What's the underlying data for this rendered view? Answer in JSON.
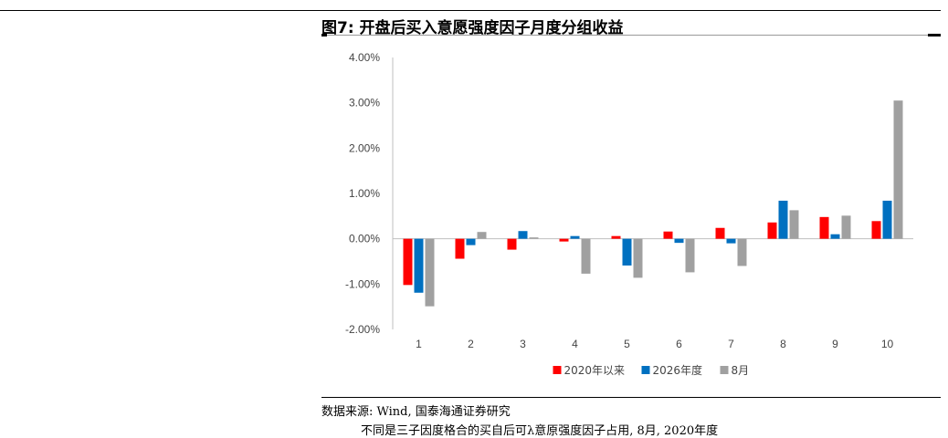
{
  "figure": {
    "title": "图7: 开盘后买入意愿强度因子月度分组收益",
    "source": "数据来源: Wind, 国泰海通证券研究",
    "note": "不同是三子因度格合的买自后可λ意原强度因子占用, 8月, 2020年度"
  },
  "chart_data": {
    "type": "bar",
    "categories": [
      "1",
      "2",
      "3",
      "4",
      "5",
      "6",
      "7",
      "8",
      "9",
      "10"
    ],
    "series": [
      {
        "name": "2020年以来",
        "color": "#ff0000",
        "values": [
          -1.02,
          -0.44,
          -0.24,
          -0.06,
          0.06,
          0.16,
          0.24,
          0.36,
          0.48,
          0.39
        ]
      },
      {
        "name": "2026年度",
        "color": "#0070c0",
        "values": [
          -1.19,
          -0.14,
          0.17,
          0.06,
          -0.59,
          -0.09,
          -0.1,
          0.84,
          0.1,
          0.84
        ]
      },
      {
        "name": "8月",
        "color": "#a0a0a0",
        "values": [
          -1.49,
          0.15,
          0.03,
          -0.77,
          -0.86,
          -0.74,
          -0.6,
          0.63,
          0.51,
          3.05
        ]
      }
    ],
    "y_ticks": [
      "4.00%",
      "3.00%",
      "2.00%",
      "1.00%",
      "0.00%",
      "-1.00%",
      "-2.00%"
    ],
    "ylim": [
      -2,
      4
    ],
    "legend_position": "bottom",
    "grid": false
  }
}
